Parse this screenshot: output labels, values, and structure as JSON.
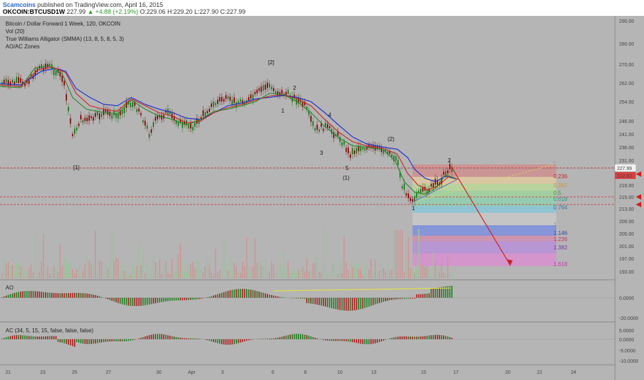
{
  "header": {
    "author": "Scamcoins",
    "published": "published on TradingView.com, April 16, 2015",
    "symbol": "OKCOIN:BTCUSD1W",
    "last": "227.99",
    "change": "▲ +4.88 (+2.19%)",
    "open": "O:229.06",
    "high": "H:229.20",
    "low": "L:227.90",
    "close": "C:227.99"
  },
  "legend": {
    "title": "Bitcoin / Dollar Forward 1 Week, 120, OKCOIN",
    "vol": "Vol (20)",
    "alligator": "True Williams Alligator (SMMA) (13, 8, 5, 8, 5, 3)",
    "aoac": "AO/AC Zones"
  },
  "price_axis": [
    "290.00",
    "280.00",
    "270.00",
    "262.00",
    "254.00",
    "246.00",
    "241.00",
    "236.00",
    "231.00",
    "227.99",
    "222.82",
    "219.00",
    "215.00",
    "213.00",
    "209.00",
    "205.00",
    "201.00",
    "197.00",
    "193.00"
  ],
  "price_tags": {
    "last": "227.99",
    "level": "222.82"
  },
  "time_axis": [
    "21",
    "23",
    "25",
    "27",
    "30",
    "Apr",
    "3",
    "6",
    "8",
    "10",
    "13",
    "15",
    "17",
    "20",
    "22",
    "24"
  ],
  "wave_labels": [
    "[1]",
    "[2]",
    "2",
    "1",
    "4",
    "3",
    "5",
    "(1)",
    "(2)",
    "2",
    "1"
  ],
  "fib_levels": [
    "0",
    "0.236",
    "0.382",
    "0.5",
    "0.618",
    "0.764",
    "1",
    "1.146",
    "1.236",
    "1.382",
    "1.618"
  ],
  "ao_pane": {
    "title": "AO",
    "ticks": [
      "0.0000",
      "-20.0000"
    ]
  },
  "ac_pane": {
    "title": "AC (34, 5, 15, 15, false, false, false)",
    "ticks": [
      "5.0000",
      "0.0000",
      "-5.0000",
      "-10.0000"
    ]
  },
  "colors": {
    "bg": "#b5b5b5",
    "up": "#2f7f2f",
    "down": "#8a1a1a",
    "blue": "#2233cc",
    "red": "#cc2222",
    "green": "#228822",
    "fibRed": "#cf8f8f",
    "fibGreen": "#9fd39f",
    "fibBlue": "#7f8fdf",
    "fibPink": "#d88fd0"
  }
}
